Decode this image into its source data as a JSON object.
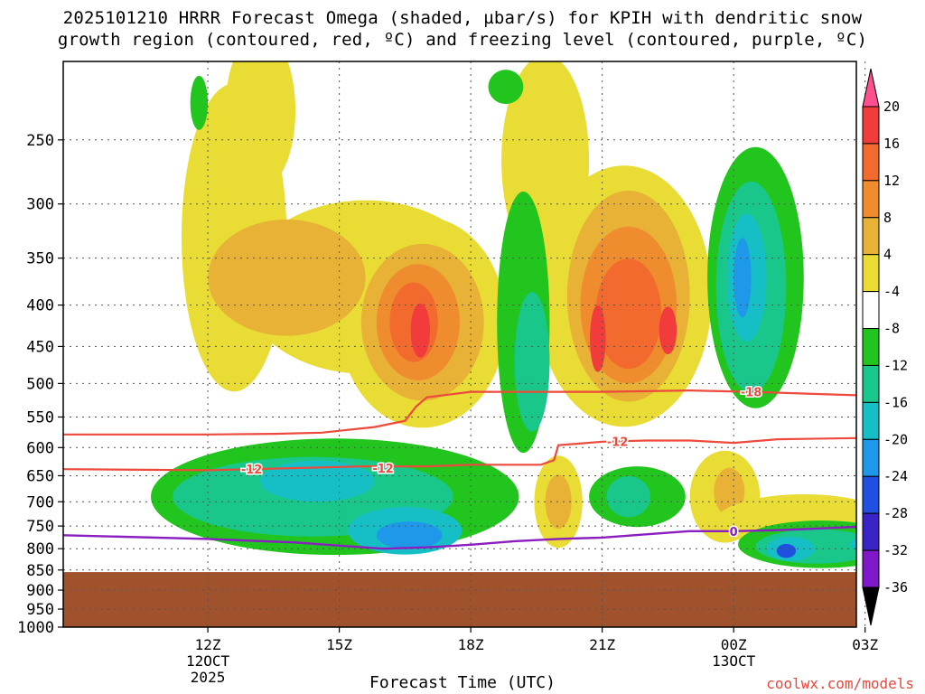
{
  "chart_data": {
    "type": "heatmap",
    "title_line1": "2025101210 HRRR Forecast Omega (shaded, µbar/s) for KPIH with dendritic snow",
    "title_line2": "growth region (contoured, red, ºC) and freezing level (contoured, purple, ºC)",
    "xlabel": "Forecast Time (UTC)",
    "ylabel": "",
    "credit": "coolwx.com/models",
    "y_axis": {
      "scale": "log-pressure",
      "ylim": [
        1000,
        200
      ],
      "ticks": [
        250,
        300,
        350,
        400,
        450,
        500,
        550,
        600,
        650,
        700,
        750,
        800,
        850,
        900,
        950,
        1000
      ]
    },
    "x_axis": {
      "unit": "hours from 12Z 12 Oct 2025",
      "xlim": [
        -3.3,
        14.8
      ],
      "ticks": [
        {
          "x": 0,
          "lines": [
            "12Z",
            "12OCT",
            "2025"
          ]
        },
        {
          "x": 3,
          "lines": [
            "15Z"
          ]
        },
        {
          "x": 6,
          "lines": [
            "18Z"
          ]
        },
        {
          "x": 9,
          "lines": [
            "21Z"
          ]
        },
        {
          "x": 12,
          "lines": [
            "00Z",
            "13OCT"
          ]
        },
        {
          "x": 15,
          "lines": [
            "03Z"
          ]
        }
      ]
    },
    "grid": true,
    "colorbar": {
      "orientation": "vertical",
      "placement": "right",
      "labels": [
        "20",
        "16",
        "12",
        "8",
        "4",
        "-4",
        "-8",
        "-12",
        "-16",
        "-20",
        "-24",
        "-28",
        "-32",
        "-36"
      ],
      "colors": [
        "#ff4f8f",
        "#f23b3b",
        "#f26a2e",
        "#ef8d2e",
        "#e8b236",
        "#e8dc35",
        "#ffffff",
        "#21c51d",
        "#19c78a",
        "#16bfc6",
        "#1e98e8",
        "#1f50e0",
        "#3a23c4",
        "#7e18c8",
        "#a61bc1",
        "#a9a9a9",
        "#000000"
      ]
    },
    "ground": {
      "color": "#a0522d",
      "below_hPa": 855
    },
    "dendritic_snow_growth_isotherms": {
      "color": "#ec4a3c",
      "series": [
        {
          "name": "-18",
          "label_at": 12.4,
          "x": [
            -3.3,
            0,
            1.5,
            2.6,
            3.8,
            4.5,
            4.75,
            5,
            6,
            9,
            11,
            12.4,
            14.8
          ],
          "y": [
            578,
            578,
            577,
            575,
            566,
            556,
            534,
            520,
            512,
            512,
            510,
            512,
            517
          ]
        },
        {
          "name": "-12",
          "label_at": 1.0,
          "x": [
            -3.3,
            0,
            2,
            3,
            3.5,
            5,
            6,
            7.6,
            7.9,
            8,
            9,
            10,
            11,
            12,
            13,
            14.8
          ],
          "y": [
            638,
            640,
            636,
            634,
            633,
            633,
            630,
            630,
            622,
            596,
            590,
            588,
            588,
            592,
            586,
            584
          ]
        },
        {
          "name": "-12",
          "label_at": 4.0,
          "label_y": 636
        }
      ]
    },
    "freezing_level": {
      "color": "#8a1ec0",
      "series": [
        {
          "name": "0",
          "label_at": 12.0,
          "x": [
            -3.3,
            0,
            1,
            2,
            3,
            4,
            5,
            6,
            7,
            8,
            9,
            10,
            11,
            12,
            13,
            14,
            14.8
          ],
          "y": [
            770,
            778,
            782,
            786,
            793,
            800,
            797,
            791,
            783,
            778,
            775,
            768,
            761,
            761,
            759,
            755,
            752
          ]
        }
      ]
    },
    "omega_features": [
      {
        "desc": "rising motion core near 17Z",
        "x_center": 4.8,
        "p_center": 430,
        "max": 16
      },
      {
        "desc": "rising motion core near 21-22Z",
        "x_center": 9.6,
        "p_center": 420,
        "max": 16
      },
      {
        "desc": "sinking motion core near 00Z",
        "x_center": 12.2,
        "p_center": 380,
        "min": -16
      },
      {
        "desc": "sinking motion low levels near 16Z",
        "x_center": 4.4,
        "p_center": 770,
        "min": -16
      },
      {
        "desc": "sinking motion near 01Z",
        "x_center": 13.1,
        "p_center": 800,
        "min": -20
      }
    ]
  }
}
